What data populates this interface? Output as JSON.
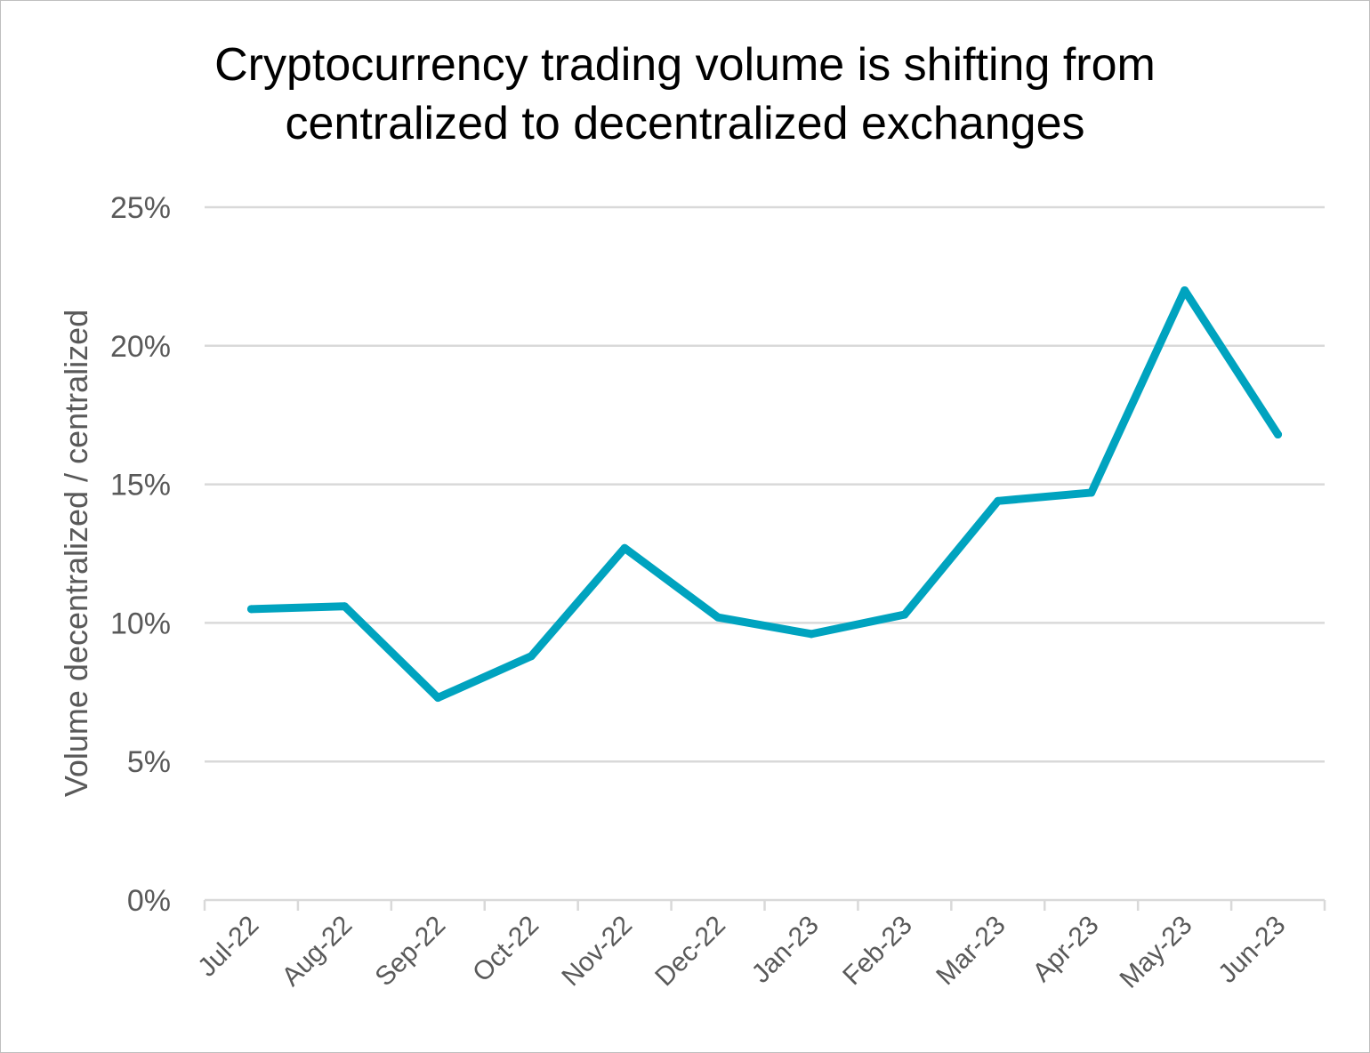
{
  "chart_data": {
    "type": "line",
    "title_lines": [
      "Cryptocurrency trading volume is shifting from",
      "centralized to decentralized exchanges"
    ],
    "xlabel": "",
    "ylabel": "Volume decentralized / centralized",
    "categories": [
      "Jul-22",
      "Aug-22",
      "Sep-22",
      "Oct-22",
      "Nov-22",
      "Dec-22",
      "Jan-23",
      "Feb-23",
      "Mar-23",
      "Apr-23",
      "May-23",
      "Jun-23"
    ],
    "series": [
      {
        "values": [
          10.5,
          10.6,
          7.3,
          8.8,
          12.7,
          10.2,
          9.6,
          10.3,
          14.4,
          14.7,
          22.0,
          16.8
        ],
        "color": "#00a3bf"
      }
    ],
    "ylim": [
      0,
      25
    ],
    "yticks": [
      0,
      5,
      10,
      15,
      20,
      25
    ],
    "ytick_labels": [
      "0%",
      "5%",
      "10%",
      "15%",
      "20%",
      "25%"
    ],
    "grid": true,
    "legend": "none",
    "gridline_color": "#d9d9d9"
  }
}
